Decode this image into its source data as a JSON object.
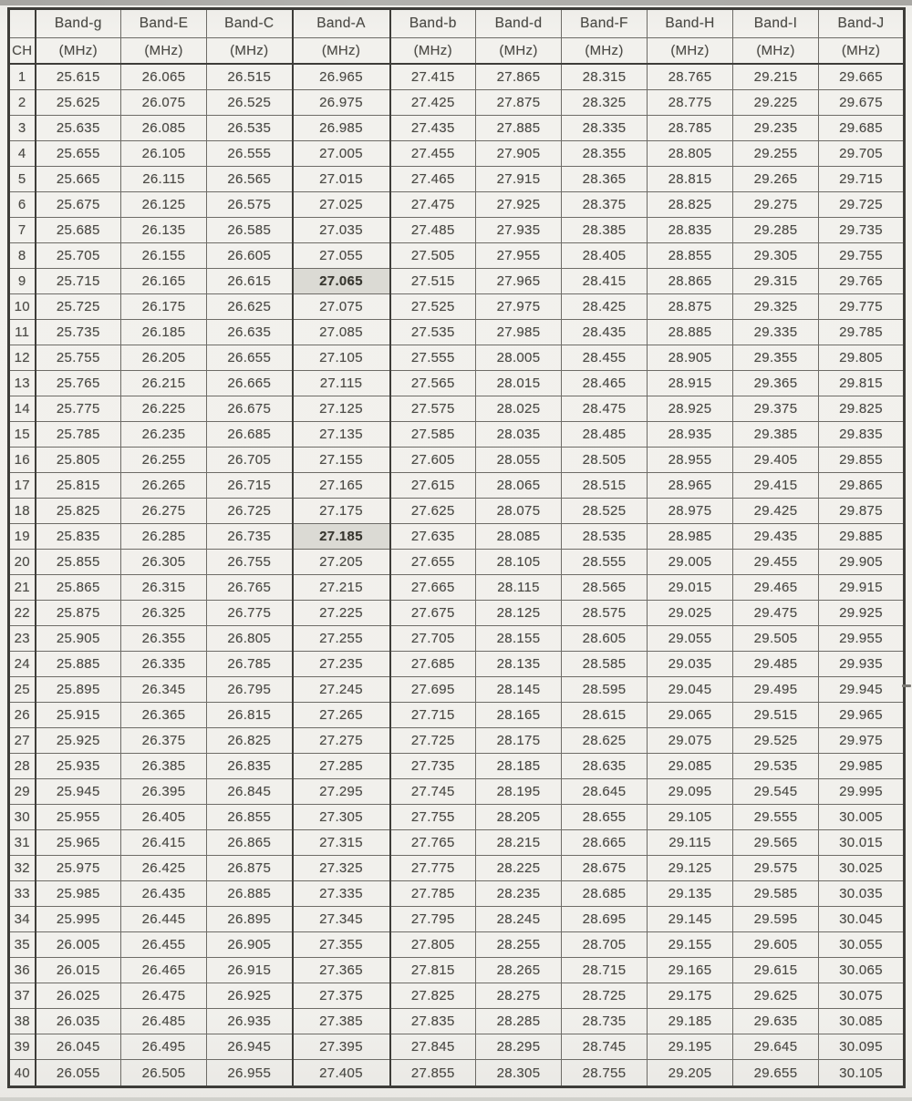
{
  "colors": {
    "paper": "#f1f0ec",
    "border_thin": "#6e6c67",
    "border_thick": "#3e3d39",
    "text": "#4b4a45",
    "highlight_bg": "#dbdad4"
  },
  "table": {
    "corner_label": "",
    "ch_header": "CH",
    "unit_label": "(MHz)",
    "bands": [
      "Band-g",
      "Band-E",
      "Band-C",
      "Band-A",
      "Band-b",
      "Band-d",
      "Band-F",
      "Band-H",
      "Band-I",
      "Band-J"
    ],
    "emphasized_band": "Band-A",
    "highlights": [
      {
        "ch": "9",
        "band": "Band-A",
        "value": "27.065"
      },
      {
        "ch": "19",
        "band": "Band-A",
        "value": "27.185"
      }
    ],
    "rows": [
      {
        "ch": "1",
        "values": [
          "25.615",
          "26.065",
          "26.515",
          "26.965",
          "27.415",
          "27.865",
          "28.315",
          "28.765",
          "29.215",
          "29.665"
        ]
      },
      {
        "ch": "2",
        "values": [
          "25.625",
          "26.075",
          "26.525",
          "26.975",
          "27.425",
          "27.875",
          "28.325",
          "28.775",
          "29.225",
          "29.675"
        ]
      },
      {
        "ch": "3",
        "values": [
          "25.635",
          "26.085",
          "26.535",
          "26.985",
          "27.435",
          "27.885",
          "28.335",
          "28.785",
          "29.235",
          "29.685"
        ]
      },
      {
        "ch": "4",
        "values": [
          "25.655",
          "26.105",
          "26.555",
          "27.005",
          "27.455",
          "27.905",
          "28.355",
          "28.805",
          "29.255",
          "29.705"
        ]
      },
      {
        "ch": "5",
        "values": [
          "25.665",
          "26.115",
          "26.565",
          "27.015",
          "27.465",
          "27.915",
          "28.365",
          "28.815",
          "29.265",
          "29.715"
        ]
      },
      {
        "ch": "6",
        "values": [
          "25.675",
          "26.125",
          "26.575",
          "27.025",
          "27.475",
          "27.925",
          "28.375",
          "28.825",
          "29.275",
          "29.725"
        ]
      },
      {
        "ch": "7",
        "values": [
          "25.685",
          "26.135",
          "26.585",
          "27.035",
          "27.485",
          "27.935",
          "28.385",
          "28.835",
          "29.285",
          "29.735"
        ]
      },
      {
        "ch": "8",
        "values": [
          "25.705",
          "26.155",
          "26.605",
          "27.055",
          "27.505",
          "27.955",
          "28.405",
          "28.855",
          "29.305",
          "29.755"
        ]
      },
      {
        "ch": "9",
        "values": [
          "25.715",
          "26.165",
          "26.615",
          "27.065",
          "27.515",
          "27.965",
          "28.415",
          "28.865",
          "29.315",
          "29.765"
        ]
      },
      {
        "ch": "10",
        "values": [
          "25.725",
          "26.175",
          "26.625",
          "27.075",
          "27.525",
          "27.975",
          "28.425",
          "28.875",
          "29.325",
          "29.775"
        ]
      },
      {
        "ch": "11",
        "values": [
          "25.735",
          "26.185",
          "26.635",
          "27.085",
          "27.535",
          "27.985",
          "28.435",
          "28.885",
          "29.335",
          "29.785"
        ]
      },
      {
        "ch": "12",
        "values": [
          "25.755",
          "26.205",
          "26.655",
          "27.105",
          "27.555",
          "28.005",
          "28.455",
          "28.905",
          "29.355",
          "29.805"
        ]
      },
      {
        "ch": "13",
        "values": [
          "25.765",
          "26.215",
          "26.665",
          "27.115",
          "27.565",
          "28.015",
          "28.465",
          "28.915",
          "29.365",
          "29.815"
        ]
      },
      {
        "ch": "14",
        "values": [
          "25.775",
          "26.225",
          "26.675",
          "27.125",
          "27.575",
          "28.025",
          "28.475",
          "28.925",
          "29.375",
          "29.825"
        ]
      },
      {
        "ch": "15",
        "values": [
          "25.785",
          "26.235",
          "26.685",
          "27.135",
          "27.585",
          "28.035",
          "28.485",
          "28.935",
          "29.385",
          "29.835"
        ]
      },
      {
        "ch": "16",
        "values": [
          "25.805",
          "26.255",
          "26.705",
          "27.155",
          "27.605",
          "28.055",
          "28.505",
          "28.955",
          "29.405",
          "29.855"
        ]
      },
      {
        "ch": "17",
        "values": [
          "25.815",
          "26.265",
          "26.715",
          "27.165",
          "27.615",
          "28.065",
          "28.515",
          "28.965",
          "29.415",
          "29.865"
        ]
      },
      {
        "ch": "18",
        "values": [
          "25.825",
          "26.275",
          "26.725",
          "27.175",
          "27.625",
          "28.075",
          "28.525",
          "28.975",
          "29.425",
          "29.875"
        ]
      },
      {
        "ch": "19",
        "values": [
          "25.835",
          "26.285",
          "26.735",
          "27.185",
          "27.635",
          "28.085",
          "28.535",
          "28.985",
          "29.435",
          "29.885"
        ]
      },
      {
        "ch": "20",
        "values": [
          "25.855",
          "26.305",
          "26.755",
          "27.205",
          "27.655",
          "28.105",
          "28.555",
          "29.005",
          "29.455",
          "29.905"
        ]
      },
      {
        "ch": "21",
        "values": [
          "25.865",
          "26.315",
          "26.765",
          "27.215",
          "27.665",
          "28.115",
          "28.565",
          "29.015",
          "29.465",
          "29.915"
        ]
      },
      {
        "ch": "22",
        "values": [
          "25.875",
          "26.325",
          "26.775",
          "27.225",
          "27.675",
          "28.125",
          "28.575",
          "29.025",
          "29.475",
          "29.925"
        ]
      },
      {
        "ch": "23",
        "values": [
          "25.905",
          "26.355",
          "26.805",
          "27.255",
          "27.705",
          "28.155",
          "28.605",
          "29.055",
          "29.505",
          "29.955"
        ]
      },
      {
        "ch": "24",
        "values": [
          "25.885",
          "26.335",
          "26.785",
          "27.235",
          "27.685",
          "28.135",
          "28.585",
          "29.035",
          "29.485",
          "29.935"
        ]
      },
      {
        "ch": "25",
        "values": [
          "25.895",
          "26.345",
          "26.795",
          "27.245",
          "27.695",
          "28.145",
          "28.595",
          "29.045",
          "29.495",
          "29.945"
        ]
      },
      {
        "ch": "26",
        "values": [
          "25.915",
          "26.365",
          "26.815",
          "27.265",
          "27.715",
          "28.165",
          "28.615",
          "29.065",
          "29.515",
          "29.965"
        ]
      },
      {
        "ch": "27",
        "values": [
          "25.925",
          "26.375",
          "26.825",
          "27.275",
          "27.725",
          "28.175",
          "28.625",
          "29.075",
          "29.525",
          "29.975"
        ]
      },
      {
        "ch": "28",
        "values": [
          "25.935",
          "26.385",
          "26.835",
          "27.285",
          "27.735",
          "28.185",
          "28.635",
          "29.085",
          "29.535",
          "29.985"
        ]
      },
      {
        "ch": "29",
        "values": [
          "25.945",
          "26.395",
          "26.845",
          "27.295",
          "27.745",
          "28.195",
          "28.645",
          "29.095",
          "29.545",
          "29.995"
        ]
      },
      {
        "ch": "30",
        "values": [
          "25.955",
          "26.405",
          "26.855",
          "27.305",
          "27.755",
          "28.205",
          "28.655",
          "29.105",
          "29.555",
          "30.005"
        ]
      },
      {
        "ch": "31",
        "values": [
          "25.965",
          "26.415",
          "26.865",
          "27.315",
          "27.765",
          "28.215",
          "28.665",
          "29.115",
          "29.565",
          "30.015"
        ]
      },
      {
        "ch": "32",
        "values": [
          "25.975",
          "26.425",
          "26.875",
          "27.325",
          "27.775",
          "28.225",
          "28.675",
          "29.125",
          "29.575",
          "30.025"
        ]
      },
      {
        "ch": "33",
        "values": [
          "25.985",
          "26.435",
          "26.885",
          "27.335",
          "27.785",
          "28.235",
          "28.685",
          "29.135",
          "29.585",
          "30.035"
        ]
      },
      {
        "ch": "34",
        "values": [
          "25.995",
          "26.445",
          "26.895",
          "27.345",
          "27.795",
          "28.245",
          "28.695",
          "29.145",
          "29.595",
          "30.045"
        ]
      },
      {
        "ch": "35",
        "values": [
          "26.005",
          "26.455",
          "26.905",
          "27.355",
          "27.805",
          "28.255",
          "28.705",
          "29.155",
          "29.605",
          "30.055"
        ]
      },
      {
        "ch": "36",
        "values": [
          "26.015",
          "26.465",
          "26.915",
          "27.365",
          "27.815",
          "28.265",
          "28.715",
          "29.165",
          "29.615",
          "30.065"
        ]
      },
      {
        "ch": "37",
        "values": [
          "26.025",
          "26.475",
          "26.925",
          "27.375",
          "27.825",
          "28.275",
          "28.725",
          "29.175",
          "29.625",
          "30.075"
        ]
      },
      {
        "ch": "38",
        "values": [
          "26.035",
          "26.485",
          "26.935",
          "27.385",
          "27.835",
          "28.285",
          "28.735",
          "29.185",
          "29.635",
          "30.085"
        ]
      },
      {
        "ch": "39",
        "values": [
          "26.045",
          "26.495",
          "26.945",
          "27.395",
          "27.845",
          "28.295",
          "28.745",
          "29.195",
          "29.645",
          "30.095"
        ]
      },
      {
        "ch": "40",
        "values": [
          "26.055",
          "26.505",
          "26.955",
          "27.405",
          "27.855",
          "28.305",
          "28.755",
          "29.205",
          "29.655",
          "30.105"
        ]
      }
    ]
  }
}
